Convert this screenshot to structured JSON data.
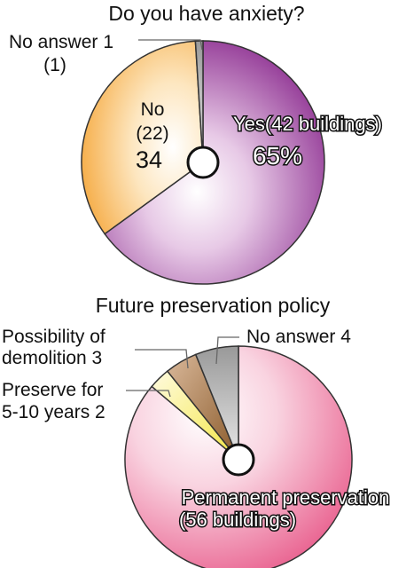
{
  "chart_data": [
    {
      "type": "pie",
      "title": "Do you have anxiety?",
      "slices": [
        {
          "label": "Yes(42 buildings)",
          "percent_label": "65%",
          "value": 65,
          "color": "#8a2a8e"
        },
        {
          "label": "No",
          "count_label": "(22)",
          "percent_label": "34",
          "value": 34,
          "color": "#f6b04e"
        },
        {
          "label": "No answer",
          "percent_label": "1",
          "count_label": "(1)",
          "value": 1,
          "color": "#9a9a9a"
        }
      ]
    },
    {
      "type": "pie",
      "title": "Future preservation policy",
      "slices": [
        {
          "label_line1": "Permanent preservation",
          "label_line2": "(56 buildings)",
          "value": 56,
          "color": "#e85a8a"
        },
        {
          "label_line1": "Preserve for",
          "label_line2": "5-10 years 2",
          "value": 2,
          "color": "#f3e641"
        },
        {
          "label_line1": "Possibility of",
          "label_line2": "demolition 3",
          "value": 3,
          "color": "#8a5a2a"
        },
        {
          "label_line1": "No answer 4",
          "value": 4,
          "color": "#aaaaaa"
        }
      ]
    }
  ]
}
